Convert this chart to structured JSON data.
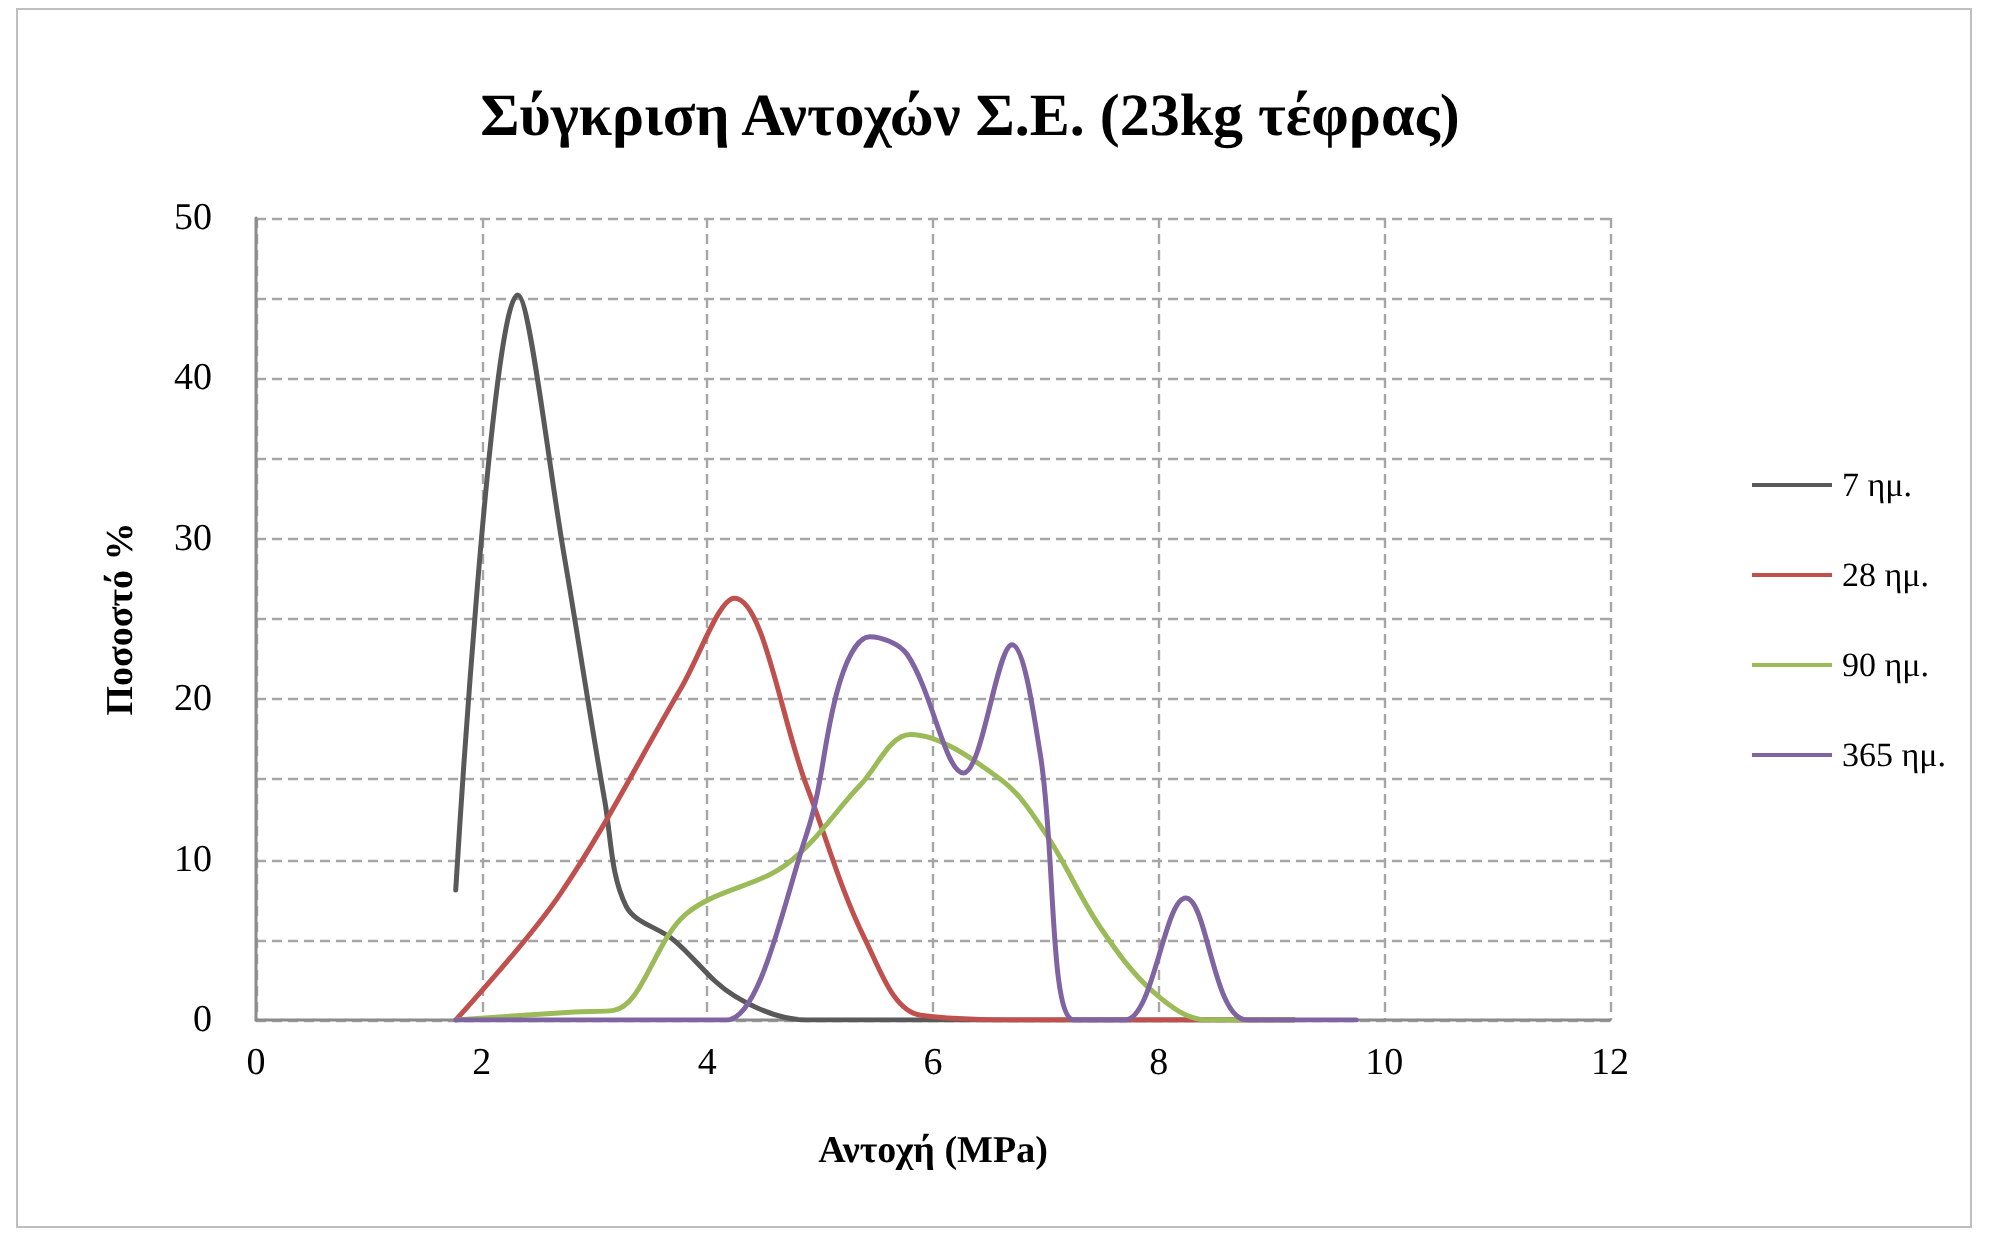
{
  "chart_data": {
    "type": "line",
    "title": "Σύγκριση Αντοχών Σ.Ε. (23kg τέφρας)",
    "xlabel": "Αντοχή (MPa)",
    "ylabel": "Ποσοστό %",
    "xlim": [
      0,
      12
    ],
    "xticks": [
      0,
      2,
      4,
      6,
      8,
      10,
      12
    ],
    "ylim": [
      0,
      50
    ],
    "yticks": [
      0,
      {
        "value": 5,
        "label": null
      },
      10,
      {
        "value": 15,
        "label": null
      },
      20,
      {
        "value": 25,
        "label": null
      },
      30,
      {
        "value": 35,
        "label": null
      },
      40,
      {
        "value": 45,
        "label": null
      },
      50
    ],
    "grid": true,
    "legend": "right",
    "marker": "none",
    "line_style": "solid",
    "series": [
      {
        "name": "7 ημ.",
        "color": "#595959",
        "x": [
          1.77,
          2.32,
          2.73,
          3.09,
          3.28,
          3.7,
          4.24,
          4.88,
          6,
          7,
          8,
          9.2
        ],
        "values": [
          8.1,
          45.2,
          29,
          13.7,
          7.1,
          5,
          1.5,
          0,
          0,
          0,
          0,
          0
        ]
      },
      {
        "name": "28 ημ.",
        "color": "#c0504d",
        "x": [
          1.77,
          2.7,
          3.76,
          4.24,
          4.88,
          5.4,
          5.89,
          7,
          8,
          9.2
        ],
        "values": [
          0,
          7.9,
          20.6,
          26.3,
          14.6,
          5,
          0.3,
          0,
          0,
          0
        ]
      },
      {
        "name": "90 ημ.",
        "color": "#9bbb59",
        "x": [
          1.77,
          2.82,
          3.17,
          3.81,
          4.7,
          5.35,
          5.8,
          6.6,
          7.0,
          7.48,
          7.96,
          8.43,
          9.2
        ],
        "values": [
          0,
          0.5,
          0.6,
          6.6,
          9.7,
          14.6,
          17.8,
          15,
          11.6,
          5.8,
          1.7,
          0,
          0
        ]
      },
      {
        "name": "365 ημ.",
        "color": "#8064a2",
        "x": [
          1.77,
          3.9,
          4.17,
          4.88,
          5.18,
          5.44,
          5.77,
          6.27,
          6.7,
          6.95,
          7.25,
          7.7,
          8.24,
          8.78,
          9.75
        ],
        "values": [
          0,
          0,
          0,
          11.6,
          21.2,
          23.9,
          22.8,
          15.4,
          23.4,
          16.6,
          0,
          0,
          7.6,
          0,
          0
        ]
      }
    ]
  }
}
